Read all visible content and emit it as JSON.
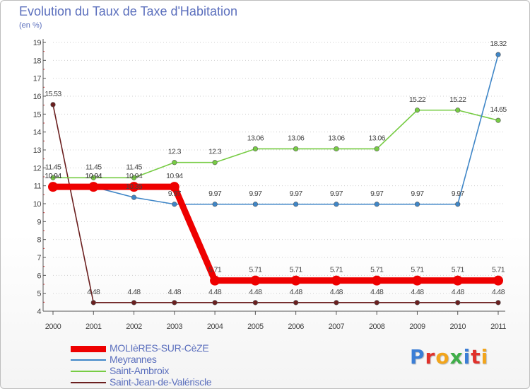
{
  "title": "Evolution du Taux de Taxe d'Habitation",
  "subtitle": "(en %)",
  "logo_text": "Proxiti",
  "logo_colors": [
    "#3b7ed6",
    "#e0312b",
    "#f2a51c",
    "#3fae49",
    "#3b7ed6",
    "#e0312b",
    "#f2a51c"
  ],
  "chart_data": {
    "type": "line",
    "title": "Evolution du Taux de Taxe d'Habitation",
    "ylabel": "(en %)",
    "xlabel": "",
    "ylim": [
      4,
      19
    ],
    "yticks": [
      "4",
      "5",
      "6",
      "7",
      "8",
      "9",
      "10",
      "11",
      "12",
      "13",
      "14",
      "15",
      "16",
      "17",
      "18",
      "19"
    ],
    "categories": [
      "2000",
      "2001",
      "2002",
      "2003",
      "2004",
      "2005",
      "2006",
      "2007",
      "2008",
      "2009",
      "2010",
      "2011"
    ],
    "grid": "horizontal dotted",
    "legend_position": "bottom-left",
    "series": [
      {
        "name": "MOLIèRES-SUR-CèZE",
        "color": "#ee0000",
        "values": [
          10.94,
          10.94,
          10.94,
          10.94,
          5.71,
          5.71,
          5.71,
          5.71,
          5.71,
          5.71,
          5.71,
          5.71
        ],
        "labels": [
          "10.94",
          "10.94",
          "10.94",
          "10.94",
          "5.71",
          "5.71",
          "5.71",
          "5.71",
          "5.71",
          "5.71",
          "5.71",
          "5.71"
        ]
      },
      {
        "name": "Meyrannes",
        "color": "#3f86c7",
        "values": [
          10.94,
          10.94,
          10.35,
          9.97,
          9.97,
          9.97,
          9.97,
          9.97,
          9.97,
          9.97,
          9.97,
          18.32
        ],
        "labels": [
          "10.94",
          "10.94",
          "10.35",
          "9.97",
          "9.97",
          "9.97",
          "9.97",
          "9.97",
          "9.97",
          "9.97",
          "9.97",
          "18.32"
        ]
      },
      {
        "name": "Saint-Ambroix",
        "color": "#77cc44",
        "values": [
          11.45,
          11.45,
          11.45,
          12.3,
          12.3,
          13.06,
          13.06,
          13.06,
          13.06,
          15.22,
          15.22,
          14.65
        ],
        "labels": [
          "11.45",
          "11.45",
          "11.45",
          "12.3",
          "12.3",
          "13.06",
          "13.06",
          "13.06",
          "13.06",
          "15.22",
          "15.22",
          "14.65"
        ]
      },
      {
        "name": "Saint-Jean-de-Valériscle",
        "color": "#6b1f1f",
        "values": [
          15.53,
          4.48,
          4.48,
          4.48,
          4.48,
          4.48,
          4.48,
          4.48,
          4.48,
          4.48,
          4.48,
          4.48
        ],
        "labels": [
          "15.53",
          "4.48",
          "4.48",
          "4.48",
          "4.48",
          "4.48",
          "4.48",
          "4.48",
          "4.48",
          "4.48",
          "4.48",
          "4.48"
        ]
      }
    ]
  }
}
